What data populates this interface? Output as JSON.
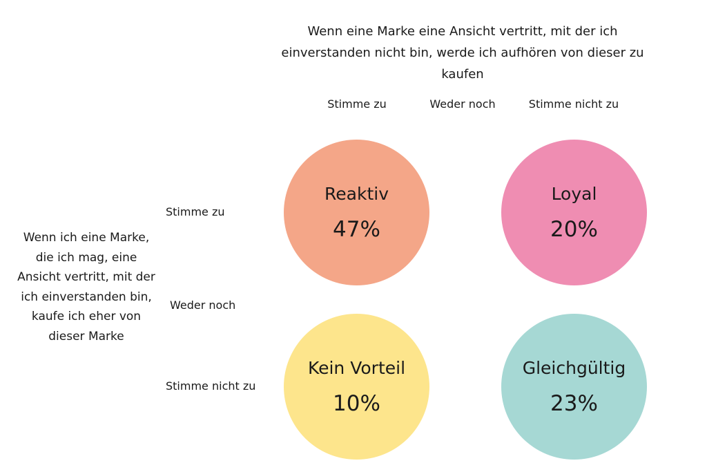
{
  "chart_data": {
    "type": "bubble-matrix",
    "title": "Wenn eine Marke eine Ansicht vertritt, mit der ich einverstanden nicht bin, werde ich aufhören von dieser zu kaufen",
    "y_title": "Wenn ich eine Marke, die ich mag, eine Ansicht vertritt, mit der ich einverstanden bin, kaufe ich eher von dieser Marke",
    "columns": [
      "Stimme zu",
      "Weder noch",
      "Stimme nicht zu"
    ],
    "rows": [
      "Stimme zu",
      "Weder noch",
      "Stimme nicht zu"
    ],
    "cells": [
      {
        "label": "Reaktiv",
        "value": 47,
        "display": "47%",
        "color": "#f4a688"
      },
      {
        "label": "Loyal",
        "value": 20,
        "display": "20%",
        "color": "#ef8db2"
      },
      {
        "label": "Kein Vorteil",
        "value": 10,
        "display": "10%",
        "color": "#fde58c"
      },
      {
        "label": "Gleichgültig",
        "value": 23,
        "display": "23%",
        "color": "#a6d8d4"
      }
    ]
  }
}
